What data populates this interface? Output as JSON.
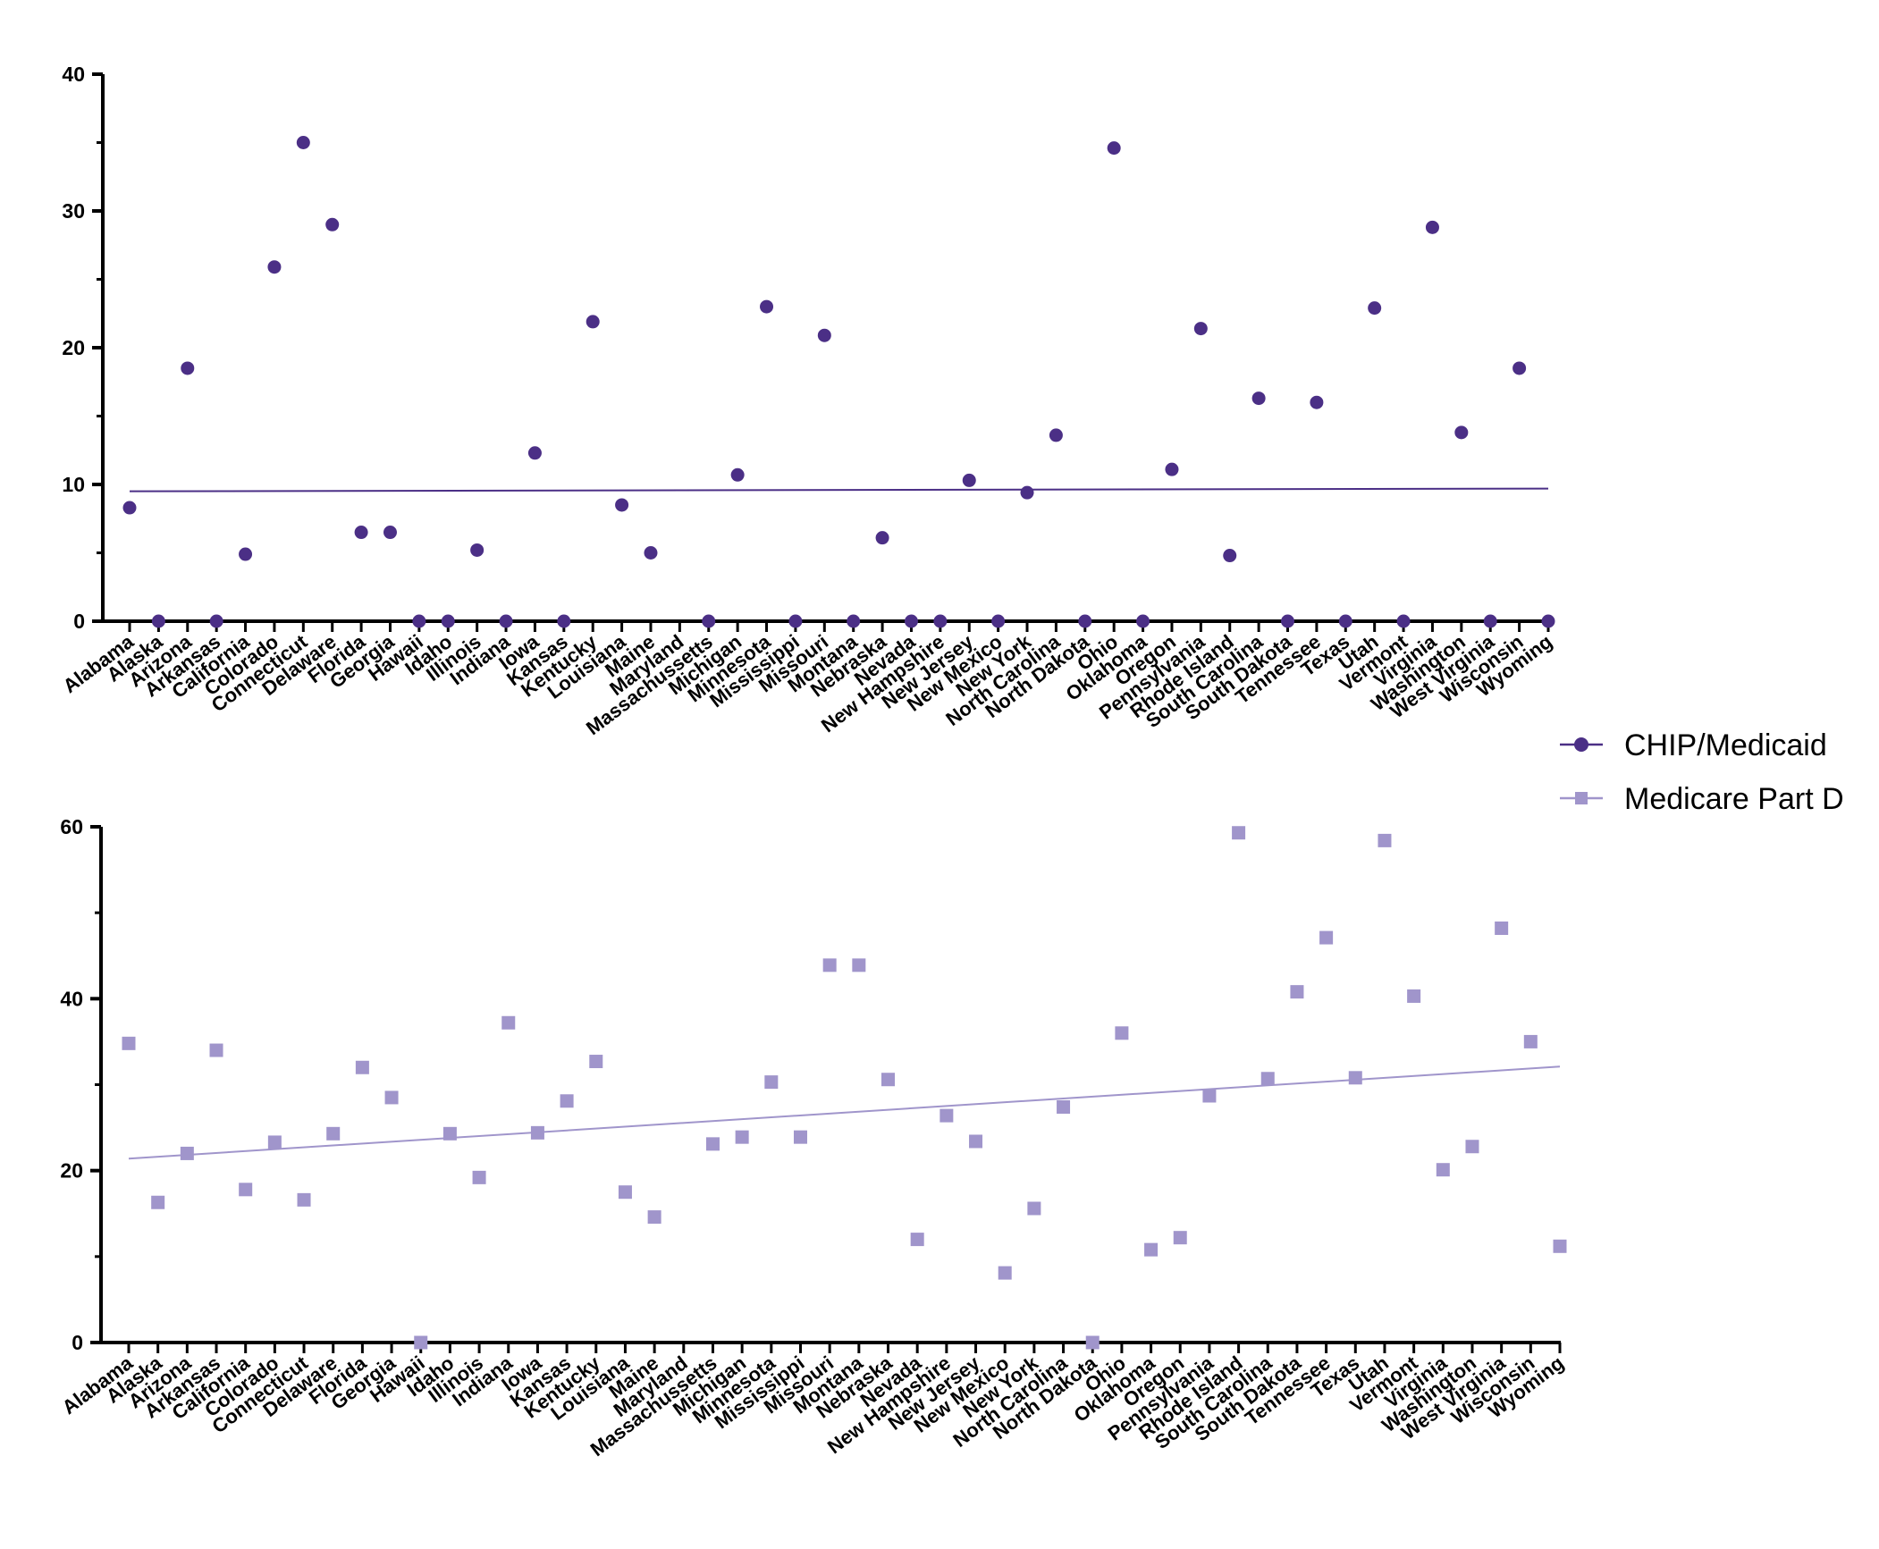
{
  "states": [
    "Alabama",
    "Alaska",
    "Arizona",
    "Arkansas",
    "California",
    "Colorado",
    "Connecticut",
    "Delaware",
    "Florida",
    "Georgia",
    "Hawaii",
    "Idaho",
    "Illinois",
    "Indiana",
    "Iowa",
    "Kansas",
    "Kentucky",
    "Louisiana",
    "Maine",
    "Maryland",
    "Massachussetts",
    "Michigan",
    "Minnesota",
    "Mississippi",
    "Missouri",
    "Montana",
    "Nebraska",
    "Nevada",
    "New Hampshire",
    "New Jersey",
    "New Mexico",
    "New York",
    "North Carolina",
    "North Dakota",
    "Ohio",
    "Oklahoma",
    "Oregon",
    "Pennsylvania",
    "Rhode Island",
    "South Carolina",
    "South Dakota",
    "Tennessee",
    "Texas",
    "Utah",
    "Vermont",
    "Virginia",
    "Washington",
    "West Virginia",
    "Wisconsin",
    "Wyoming"
  ],
  "legend": [
    {
      "label": "CHIP/Medicaid",
      "color": "#4b2f86",
      "marker": "circle"
    },
    {
      "label": "Medicare Part D",
      "color": "#a095cb",
      "marker": "square"
    }
  ],
  "chart_data": [
    {
      "type": "scatter",
      "series": [
        {
          "name": "CHIP/Medicaid",
          "color": "#4b2f86",
          "marker": "circle",
          "values": [
            8.3,
            0,
            18.5,
            0,
            4.9,
            25.9,
            35.0,
            29.0,
            6.5,
            6.5,
            0,
            0,
            5.2,
            0,
            12.3,
            0,
            21.9,
            8.5,
            5.0,
            null,
            0,
            10.7,
            23.0,
            0,
            20.9,
            0,
            6.1,
            0,
            0,
            10.3,
            0,
            9.4,
            13.6,
            0,
            34.6,
            0,
            11.1,
            21.4,
            4.8,
            16.3,
            0,
            16.0,
            0,
            22.9,
            0,
            28.8,
            13.8,
            0,
            18.5,
            0
          ]
        }
      ],
      "trendline": {
        "start": 9.5,
        "end": 9.7
      },
      "ylim": [
        0,
        40
      ],
      "yticks": [
        0,
        10,
        20,
        30,
        40
      ],
      "title": "",
      "xlabel": "",
      "ylabel": ""
    },
    {
      "type": "scatter",
      "series": [
        {
          "name": "Medicare Part D",
          "color": "#a095cb",
          "marker": "square",
          "values": [
            34.8,
            16.3,
            22.0,
            34.0,
            17.8,
            23.3,
            16.6,
            24.3,
            32.0,
            28.5,
            0,
            24.3,
            19.2,
            37.2,
            24.4,
            28.1,
            32.7,
            17.5,
            14.6,
            null,
            23.1,
            23.9,
            30.3,
            23.9,
            43.9,
            43.9,
            30.6,
            12.0,
            26.4,
            23.4,
            8.1,
            15.6,
            27.4,
            0,
            36.0,
            10.8,
            12.2,
            28.7,
            59.3,
            30.7,
            40.8,
            47.1,
            30.8,
            58.4,
            40.3,
            20.1,
            22.8,
            48.2,
            35.0,
            11.2
          ]
        }
      ],
      "trendline": {
        "start": 21.4,
        "end": 32.1
      },
      "ylim": [
        0,
        60
      ],
      "yticks": [
        0,
        20,
        40,
        60
      ],
      "title": "",
      "xlabel": "",
      "ylabel": ""
    }
  ]
}
